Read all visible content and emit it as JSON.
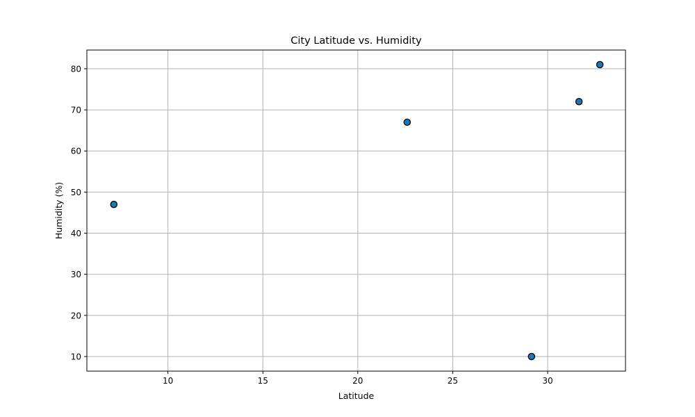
{
  "chart_data": {
    "type": "scatter",
    "title": "City Latitude vs. Humidity",
    "xlabel": "Latitude",
    "ylabel": "Humidity (%)",
    "xlim": [
      5.73,
      34.1
    ],
    "ylim": [
      6.45,
      84.55
    ],
    "xticks": [
      10,
      15,
      20,
      25,
      30
    ],
    "yticks": [
      10,
      20,
      30,
      40,
      50,
      60,
      70,
      80
    ],
    "grid": true,
    "colors": {
      "marker_fill": "#1f77b4",
      "marker_edge": "#000000",
      "grid": "#b0b0b0"
    },
    "points": [
      {
        "x": 7.15,
        "y": 47
      },
      {
        "x": 22.6,
        "y": 67
      },
      {
        "x": 29.15,
        "y": 10
      },
      {
        "x": 31.65,
        "y": 72
      },
      {
        "x": 32.75,
        "y": 81
      }
    ]
  }
}
